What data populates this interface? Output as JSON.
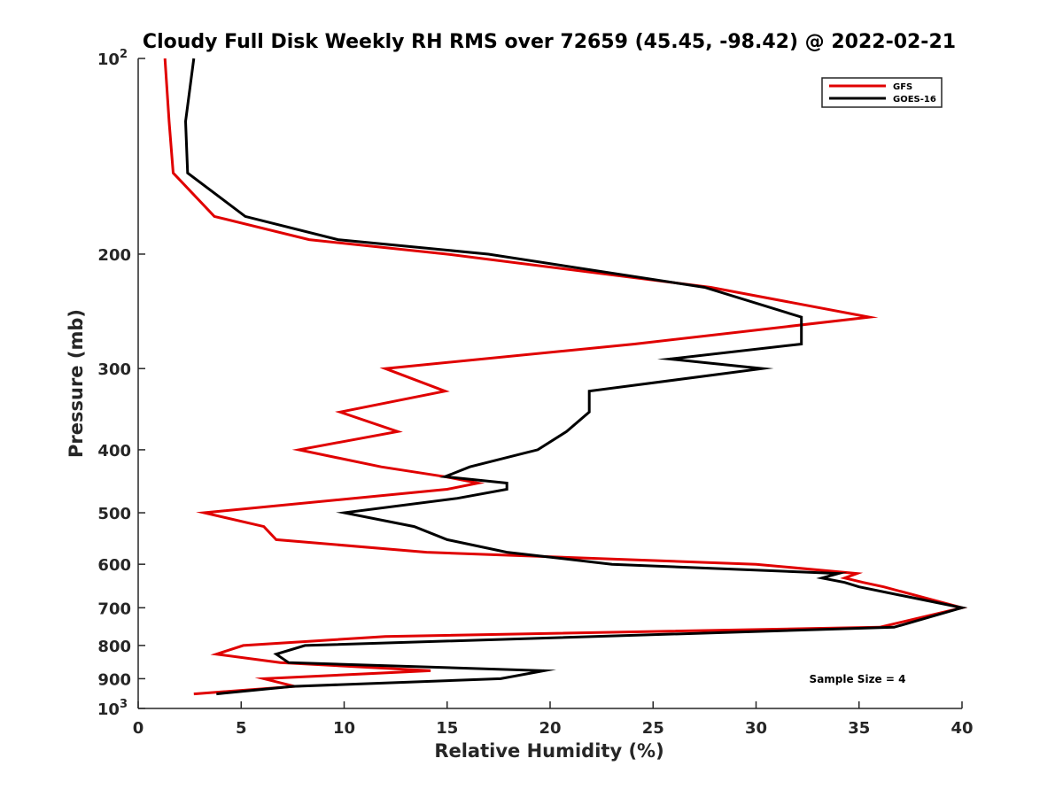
{
  "chart_data": {
    "type": "line",
    "title": "Cloudy Full Disk Weekly RH RMS over 72659 (45.45, -98.42) @ 2022-02-21",
    "xlabel": "Relative Humidity (%)",
    "ylabel": "Pressure (mb)",
    "xlim": [
      0,
      40
    ],
    "ylim": [
      100,
      1000
    ],
    "y_scale": "log",
    "y_reversed": true,
    "grid": false,
    "legend_position": "top-right",
    "x_ticks": [
      0,
      5,
      10,
      15,
      20,
      25,
      30,
      35,
      40
    ],
    "x_tick_labels": [
      "0",
      "5",
      "10",
      "15",
      "20",
      "25",
      "30",
      "35",
      "40"
    ],
    "y_ticks": [
      100,
      200,
      300,
      400,
      500,
      600,
      700,
      800,
      900,
      1000
    ],
    "y_tick_labels": [
      {
        "base": "10",
        "exp": "2"
      },
      {
        "base": "200",
        "exp": ""
      },
      {
        "base": "300",
        "exp": ""
      },
      {
        "base": "400",
        "exp": ""
      },
      {
        "base": "500",
        "exp": ""
      },
      {
        "base": "600",
        "exp": ""
      },
      {
        "base": "700",
        "exp": ""
      },
      {
        "base": "800",
        "exp": ""
      },
      {
        "base": "900",
        "exp": ""
      },
      {
        "base": "10",
        "exp": "3"
      }
    ],
    "annotation": "Sample Size = 4",
    "series": [
      {
        "name": "GFS",
        "color": "#e00000",
        "points": [
          [
            1.3,
            100
          ],
          [
            1.5,
            125
          ],
          [
            1.7,
            150
          ],
          [
            3.7,
            175
          ],
          [
            8.3,
            190
          ],
          [
            15.0,
            200
          ],
          [
            27.8,
            225
          ],
          [
            35.5,
            250
          ],
          [
            24.1,
            275
          ],
          [
            12.0,
            300
          ],
          [
            14.9,
            325
          ],
          [
            9.8,
            350
          ],
          [
            12.6,
            375
          ],
          [
            7.8,
            400
          ],
          [
            11.8,
            425
          ],
          [
            14.9,
            440
          ],
          [
            16.5,
            450
          ],
          [
            15.0,
            460
          ],
          [
            3.2,
            500
          ],
          [
            6.1,
            525
          ],
          [
            6.7,
            550
          ],
          [
            14.0,
            575
          ],
          [
            30.0,
            600
          ],
          [
            34.9,
            620
          ],
          [
            34.3,
            630
          ],
          [
            35.2,
            640
          ],
          [
            36.2,
            650
          ],
          [
            40.0,
            700
          ],
          [
            36.0,
            750
          ],
          [
            12.0,
            775
          ],
          [
            5.1,
            800
          ],
          [
            3.8,
            825
          ],
          [
            6.9,
            850
          ],
          [
            14.2,
            875
          ],
          [
            6.1,
            900
          ],
          [
            7.6,
            925
          ],
          [
            2.7,
            950
          ]
        ]
      },
      {
        "name": "GOES-16",
        "color": "#000000",
        "points": [
          [
            2.7,
            100
          ],
          [
            2.3,
            125
          ],
          [
            2.4,
            150
          ],
          [
            5.2,
            175
          ],
          [
            9.7,
            190
          ],
          [
            17.0,
            200
          ],
          [
            27.5,
            225
          ],
          [
            32.2,
            250
          ],
          [
            32.2,
            275
          ],
          [
            25.8,
            290
          ],
          [
            30.3,
            300
          ],
          [
            21.9,
            325
          ],
          [
            21.9,
            350
          ],
          [
            20.8,
            375
          ],
          [
            19.4,
            400
          ],
          [
            16.1,
            425
          ],
          [
            14.9,
            440
          ],
          [
            17.9,
            450
          ],
          [
            17.9,
            460
          ],
          [
            15.5,
            475
          ],
          [
            10.0,
            500
          ],
          [
            13.4,
            525
          ],
          [
            15.0,
            550
          ],
          [
            17.9,
            575
          ],
          [
            23.0,
            600
          ],
          [
            34.0,
            620
          ],
          [
            33.2,
            630
          ],
          [
            34.3,
            640
          ],
          [
            35.0,
            650
          ],
          [
            40.0,
            700
          ],
          [
            36.7,
            750
          ],
          [
            8.1,
            800
          ],
          [
            6.7,
            825
          ],
          [
            7.3,
            850
          ],
          [
            19.7,
            875
          ],
          [
            17.6,
            900
          ],
          [
            7.5,
            925
          ],
          [
            3.8,
            950
          ]
        ]
      }
    ]
  }
}
